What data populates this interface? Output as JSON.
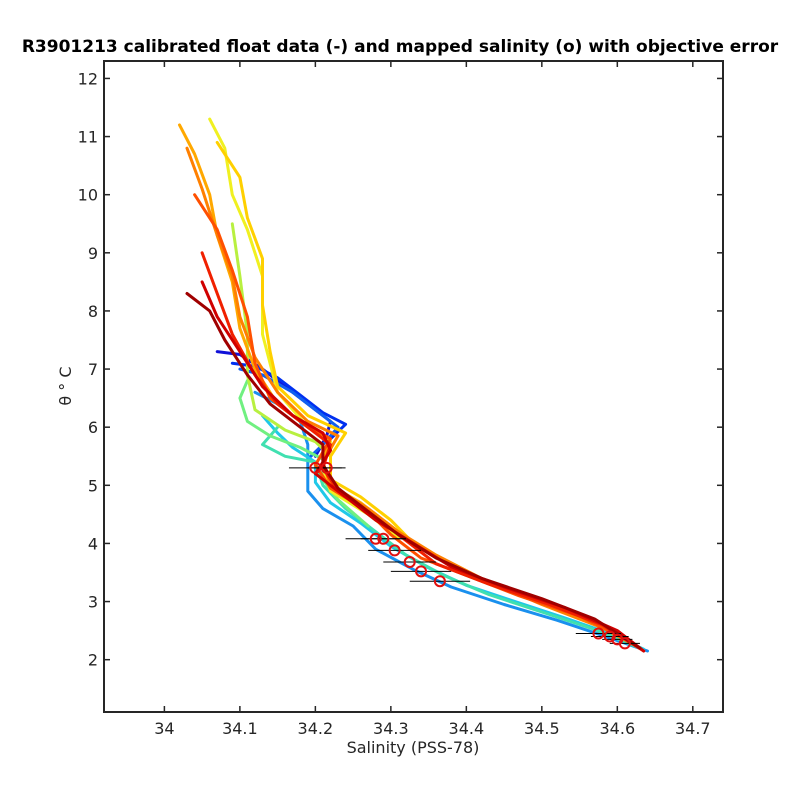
{
  "chart_data": {
    "type": "line",
    "title": "R3901213 calibrated float data (-) and mapped salinity (o) with objective error",
    "xlabel": "Salinity (PSS-78)",
    "ylabel": "θ ° C",
    "xlim": [
      33.92,
      34.74
    ],
    "ylim": [
      1.1,
      12.3
    ],
    "xticks": [
      34,
      34.1,
      34.2,
      34.3,
      34.4,
      34.5,
      34.6,
      34.7
    ],
    "yticks": [
      2,
      3,
      4,
      5,
      6,
      7,
      8,
      9,
      10,
      11,
      12
    ],
    "grid": false,
    "legend": "none",
    "series": [
      {
        "color": "#1010d8",
        "points": [
          [
            34.07,
            7.3
          ],
          [
            34.1,
            7.25
          ],
          [
            34.13,
            7.0
          ],
          [
            34.16,
            6.7
          ],
          [
            34.19,
            6.4
          ],
          [
            34.22,
            6.1
          ],
          [
            34.215,
            5.85
          ],
          [
            34.2,
            5.5
          ]
        ]
      },
      {
        "color": "#0030f0",
        "points": [
          [
            34.09,
            7.1
          ],
          [
            34.12,
            7.05
          ],
          [
            34.15,
            6.85
          ],
          [
            34.18,
            6.55
          ],
          [
            34.21,
            6.25
          ],
          [
            34.24,
            6.05
          ],
          [
            34.22,
            5.8
          ]
        ]
      },
      {
        "color": "#1060f0",
        "points": [
          [
            34.1,
            7.0
          ],
          [
            34.13,
            6.9
          ],
          [
            34.17,
            6.6
          ],
          [
            34.2,
            6.3
          ],
          [
            34.23,
            6.0
          ],
          [
            34.21,
            5.7
          ],
          [
            34.19,
            5.45
          ]
        ]
      },
      {
        "color": "#1a90ee",
        "points": [
          [
            34.12,
            6.6
          ],
          [
            34.15,
            6.4
          ],
          [
            34.18,
            6.1
          ],
          [
            34.19,
            5.7
          ],
          [
            34.19,
            5.2
          ],
          [
            34.19,
            4.9
          ],
          [
            34.21,
            4.6
          ],
          [
            34.25,
            4.3
          ],
          [
            34.28,
            3.9
          ],
          [
            34.33,
            3.55
          ],
          [
            34.38,
            3.25
          ],
          [
            34.45,
            2.95
          ],
          [
            34.52,
            2.68
          ],
          [
            34.58,
            2.42
          ],
          [
            34.64,
            2.15
          ]
        ]
      },
      {
        "color": "#20c8e8",
        "points": [
          [
            34.13,
            6.2
          ],
          [
            34.15,
            5.9
          ],
          [
            34.17,
            5.65
          ],
          [
            34.2,
            5.4
          ],
          [
            34.2,
            5.05
          ],
          [
            34.22,
            4.7
          ],
          [
            34.26,
            4.35
          ],
          [
            34.3,
            3.95
          ],
          [
            34.35,
            3.58
          ],
          [
            34.4,
            3.28
          ],
          [
            34.46,
            3.02
          ],
          [
            34.53,
            2.72
          ],
          [
            34.59,
            2.45
          ],
          [
            34.635,
            2.18
          ]
        ]
      },
      {
        "color": "#40e0b0",
        "points": [
          [
            34.15,
            6.0
          ],
          [
            34.13,
            5.7
          ],
          [
            34.16,
            5.5
          ],
          [
            34.2,
            5.4
          ],
          [
            34.21,
            5.0
          ],
          [
            34.24,
            4.6
          ],
          [
            34.28,
            4.2
          ],
          [
            34.32,
            3.8
          ],
          [
            34.37,
            3.45
          ],
          [
            34.43,
            3.12
          ],
          [
            34.5,
            2.82
          ],
          [
            34.57,
            2.52
          ],
          [
            34.63,
            2.2
          ]
        ]
      },
      {
        "color": "#70f080",
        "points": [
          [
            34.11,
            6.8
          ],
          [
            34.1,
            6.5
          ],
          [
            34.11,
            6.1
          ],
          [
            34.14,
            5.85
          ],
          [
            34.18,
            5.65
          ],
          [
            34.21,
            5.45
          ],
          [
            34.21,
            5.1
          ],
          [
            34.23,
            4.75
          ],
          [
            34.27,
            4.3
          ]
        ]
      },
      {
        "color": "#b8f040",
        "points": [
          [
            34.09,
            9.5
          ],
          [
            34.1,
            8.6
          ],
          [
            34.11,
            7.6
          ],
          [
            34.11,
            6.9
          ],
          [
            34.12,
            6.3
          ],
          [
            34.16,
            5.95
          ],
          [
            34.2,
            5.75
          ],
          [
            34.22,
            5.5
          ],
          [
            34.22,
            5.15
          ]
        ]
      },
      {
        "color": "#f0f020",
        "points": [
          [
            34.06,
            11.3
          ],
          [
            34.08,
            10.8
          ],
          [
            34.09,
            10.0
          ],
          [
            34.11,
            9.4
          ],
          [
            34.13,
            8.6
          ],
          [
            34.13,
            7.6
          ],
          [
            34.15,
            6.6
          ],
          [
            34.19,
            6.0
          ],
          [
            34.22,
            5.75
          ],
          [
            34.21,
            5.3
          ],
          [
            34.22,
            4.9
          ],
          [
            34.27,
            4.5
          ],
          [
            34.31,
            4.1
          ]
        ]
      },
      {
        "color": "#ffd000",
        "points": [
          [
            34.07,
            10.9
          ],
          [
            34.1,
            10.3
          ],
          [
            34.11,
            9.6
          ],
          [
            34.13,
            8.9
          ],
          [
            34.13,
            8.1
          ],
          [
            34.14,
            7.3
          ],
          [
            34.15,
            6.7
          ],
          [
            34.19,
            6.2
          ],
          [
            34.24,
            5.9
          ],
          [
            34.22,
            5.5
          ],
          [
            34.22,
            5.1
          ],
          [
            34.26,
            4.8
          ],
          [
            34.3,
            4.4
          ],
          [
            34.33,
            4.0
          ]
        ]
      },
      {
        "color": "#ffa800",
        "points": [
          [
            34.02,
            11.2
          ],
          [
            34.04,
            10.7
          ],
          [
            34.06,
            10.0
          ],
          [
            34.07,
            9.3
          ],
          [
            34.09,
            8.5
          ],
          [
            34.1,
            7.7
          ],
          [
            34.12,
            7.0
          ],
          [
            34.15,
            6.4
          ],
          [
            34.19,
            6.0
          ],
          [
            34.22,
            5.8
          ],
          [
            34.21,
            5.4
          ],
          [
            34.22,
            5.0
          ],
          [
            34.26,
            4.7
          ],
          [
            34.3,
            4.3
          ],
          [
            34.34,
            3.9
          ]
        ]
      },
      {
        "color": "#ff8000",
        "points": [
          [
            34.03,
            10.8
          ],
          [
            34.05,
            10.1
          ],
          [
            34.07,
            9.3
          ],
          [
            34.09,
            8.6
          ],
          [
            34.1,
            7.9
          ],
          [
            34.12,
            7.2
          ],
          [
            34.15,
            6.6
          ],
          [
            34.19,
            6.1
          ],
          [
            34.23,
            5.85
          ],
          [
            34.21,
            5.4
          ],
          [
            34.22,
            5.0
          ],
          [
            34.27,
            4.6
          ],
          [
            34.31,
            4.2
          ],
          [
            34.36,
            3.8
          ],
          [
            34.42,
            3.4
          ],
          [
            34.5,
            2.95
          ],
          [
            34.58,
            2.55
          ],
          [
            34.63,
            2.2
          ]
        ]
      },
      {
        "color": "#ff5000",
        "points": [
          [
            34.04,
            10.0
          ],
          [
            34.07,
            9.4
          ],
          [
            34.09,
            8.7
          ],
          [
            34.11,
            7.9
          ],
          [
            34.12,
            7.1
          ],
          [
            34.14,
            6.5
          ],
          [
            34.18,
            6.1
          ],
          [
            34.22,
            5.8
          ],
          [
            34.2,
            5.35
          ],
          [
            34.22,
            4.95
          ],
          [
            34.27,
            4.55
          ],
          [
            34.3,
            4.15
          ],
          [
            34.34,
            3.75
          ],
          [
            34.4,
            3.45
          ],
          [
            34.47,
            3.1
          ],
          [
            34.55,
            2.75
          ],
          [
            34.62,
            2.3
          ]
        ]
      },
      {
        "color": "#f02000",
        "points": [
          [
            34.05,
            9.0
          ],
          [
            34.07,
            8.3
          ],
          [
            34.09,
            7.6
          ],
          [
            34.12,
            6.9
          ],
          [
            34.15,
            6.4
          ],
          [
            34.19,
            6.0
          ],
          [
            34.22,
            5.7
          ],
          [
            34.21,
            5.3
          ],
          [
            34.23,
            4.9
          ],
          [
            34.28,
            4.45
          ],
          [
            34.32,
            4.05
          ],
          [
            34.36,
            3.65
          ],
          [
            34.43,
            3.3
          ],
          [
            34.51,
            2.95
          ],
          [
            34.58,
            2.6
          ],
          [
            34.635,
            2.15
          ]
        ]
      },
      {
        "color": "#d00000",
        "points": [
          [
            34.05,
            8.5
          ],
          [
            34.07,
            7.9
          ],
          [
            34.1,
            7.3
          ],
          [
            34.13,
            6.7
          ],
          [
            34.17,
            6.2
          ],
          [
            34.21,
            5.9
          ],
          [
            34.22,
            5.6
          ],
          [
            34.2,
            5.2
          ],
          [
            34.24,
            4.8
          ],
          [
            34.28,
            4.4
          ],
          [
            34.33,
            4.0
          ],
          [
            34.38,
            3.6
          ],
          [
            34.45,
            3.25
          ],
          [
            34.53,
            2.9
          ],
          [
            34.6,
            2.5
          ],
          [
            34.635,
            2.15
          ]
        ]
      },
      {
        "color": "#a00000",
        "points": [
          [
            34.03,
            8.3
          ],
          [
            34.06,
            8.0
          ],
          [
            34.08,
            7.5
          ],
          [
            34.11,
            6.9
          ],
          [
            34.14,
            6.4
          ],
          [
            34.18,
            6.0
          ],
          [
            34.21,
            5.7
          ],
          [
            34.21,
            5.35
          ],
          [
            34.23,
            4.95
          ],
          [
            34.27,
            4.55
          ],
          [
            34.31,
            4.15
          ],
          [
            34.36,
            3.75
          ],
          [
            34.42,
            3.4
          ],
          [
            34.5,
            3.05
          ],
          [
            34.57,
            2.7
          ],
          [
            34.63,
            2.2
          ]
        ]
      }
    ],
    "mapped_points": [
      {
        "x": 34.2,
        "y": 5.3,
        "err": 0.035
      },
      {
        "x": 34.215,
        "y": 5.3,
        "err": 0.025
      },
      {
        "x": 34.28,
        "y": 4.08,
        "err": 0.04
      },
      {
        "x": 34.29,
        "y": 4.08,
        "err": 0.03
      },
      {
        "x": 34.305,
        "y": 3.88,
        "err": 0.035
      },
      {
        "x": 34.325,
        "y": 3.68,
        "err": 0.035
      },
      {
        "x": 34.34,
        "y": 3.52,
        "err": 0.04
      },
      {
        "x": 34.365,
        "y": 3.35,
        "err": 0.04
      },
      {
        "x": 34.575,
        "y": 2.45,
        "err": 0.03
      },
      {
        "x": 34.59,
        "y": 2.4,
        "err": 0.025
      },
      {
        "x": 34.6,
        "y": 2.35,
        "err": 0.02
      },
      {
        "x": 34.61,
        "y": 2.28,
        "err": 0.02
      }
    ]
  }
}
